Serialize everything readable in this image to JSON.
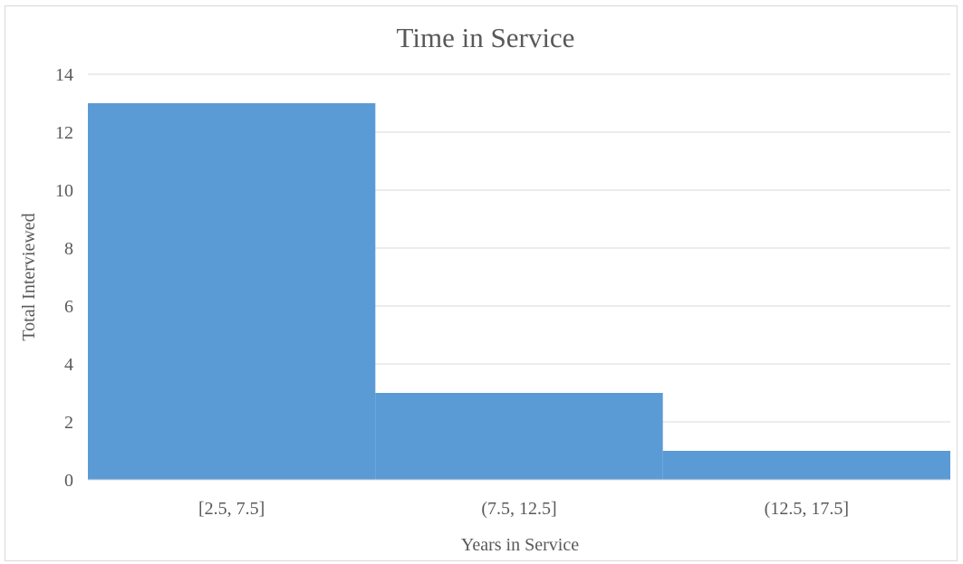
{
  "chart_data": {
    "type": "bar",
    "title": "Time in Service",
    "xlabel": "Years in Service",
    "ylabel": "Total Interviewed",
    "categories": [
      "[2.5, 7.5]",
      "(7.5, 12.5]",
      "(12.5, 17.5]"
    ],
    "values": [
      13,
      3,
      1
    ],
    "ylim": [
      0,
      14
    ],
    "yticks": [
      0,
      2,
      4,
      6,
      8,
      10,
      12,
      14
    ],
    "grid": true,
    "legend": "none",
    "bar_color": "#5b9bd5",
    "gridline_color": "#d9d9d9",
    "text_color": "#595959"
  }
}
